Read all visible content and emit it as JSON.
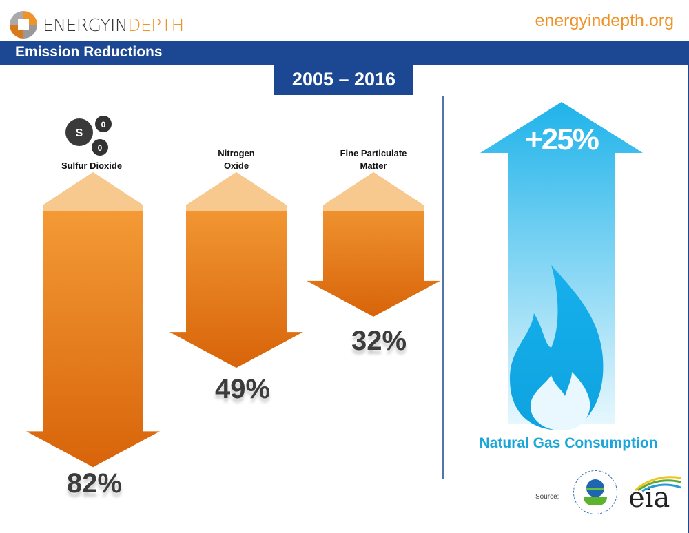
{
  "header": {
    "logo_text_a": "ENERGYIN",
    "logo_text_b": "DEPTH",
    "site": "energyindepth.org",
    "title": "Emission Reductions",
    "years": "2005 – 2016"
  },
  "chart_data": {
    "type": "bar",
    "title": "Emission Reductions",
    "subtitle": "2005 – 2016",
    "categories": [
      "Sulfur Dioxide",
      "Nitrogen Oxide",
      "Fine Particulate Matter"
    ],
    "values": [
      82,
      49,
      32
    ],
    "value_labels": [
      "82%",
      "49%",
      "32%"
    ],
    "unit": "% reduction",
    "comparison": {
      "name": "Natural Gas Consumption",
      "value": 25,
      "label": "+25%"
    }
  },
  "labels": {
    "so2_line1": "Sulfur Dioxide",
    "nox_line1": "Nitrogen",
    "nox_line2": "Oxide",
    "pm_line1": "Fine Particulate",
    "pm_line2": "Matter",
    "molecule_s": "S",
    "molecule_o": "0"
  },
  "footer": {
    "source": "Source:",
    "epa_text": "UNITED STATES ENVIRONMENTAL PROTECTION AGENCY",
    "eia": "eia"
  },
  "colors": {
    "blue": "#1c4793",
    "orange": "#f0922a",
    "cyan": "#1ba6d9"
  }
}
